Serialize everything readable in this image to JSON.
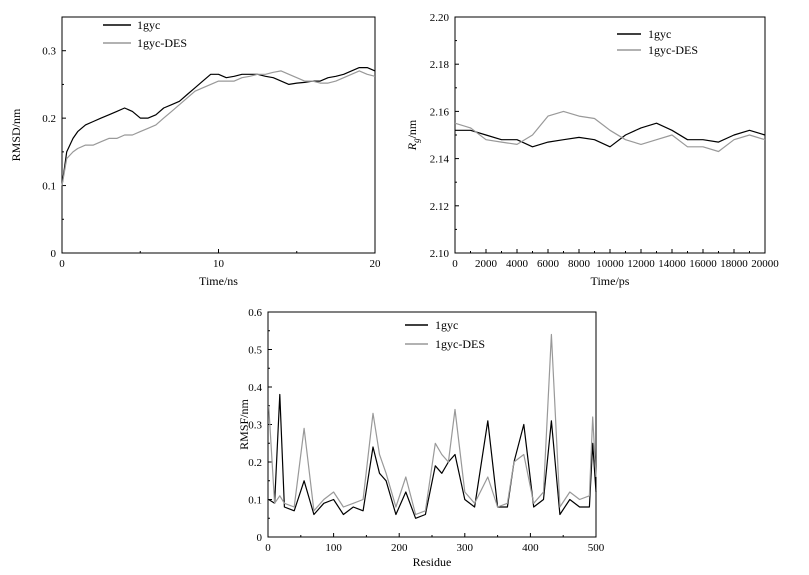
{
  "chart_data": [
    {
      "type": "line",
      "title": "",
      "xlabel": "Time/ns",
      "ylabel": "RMSD/nm",
      "xlim": [
        0,
        20
      ],
      "ylim": [
        0,
        0.35
      ],
      "x_ticks": [
        0,
        10,
        20
      ],
      "x_tick_labels": [
        "0",
        "10",
        "20"
      ],
      "y_ticks": [
        0,
        0.1,
        0.2,
        0.3
      ],
      "y_tick_labels": [
        "0",
        "0.1",
        "0.2",
        "0.3"
      ],
      "legend": {
        "position": "top-left",
        "entries": [
          "1gyc",
          "1gyc-DES"
        ]
      },
      "grid": false,
      "series": [
        {
          "name": "1gyc",
          "color": "#000000",
          "x": [
            0,
            0.3,
            0.7,
            1,
            1.5,
            2,
            2.5,
            3,
            3.5,
            4,
            4.5,
            5,
            5.5,
            6,
            6.5,
            7,
            7.5,
            8,
            8.5,
            9,
            9.5,
            10,
            10.5,
            11,
            11.5,
            12,
            12.5,
            13,
            13.5,
            14,
            14.5,
            15,
            15.5,
            16,
            16.5,
            17,
            17.5,
            18,
            18.5,
            19,
            19.5,
            20
          ],
          "y": [
            0.1,
            0.15,
            0.17,
            0.18,
            0.19,
            0.195,
            0.2,
            0.205,
            0.21,
            0.215,
            0.21,
            0.2,
            0.2,
            0.205,
            0.215,
            0.22,
            0.225,
            0.235,
            0.245,
            0.255,
            0.265,
            0.265,
            0.26,
            0.262,
            0.265,
            0.265,
            0.265,
            0.262,
            0.26,
            0.255,
            0.25,
            0.252,
            0.253,
            0.255,
            0.255,
            0.26,
            0.262,
            0.265,
            0.27,
            0.275,
            0.275,
            0.27
          ]
        },
        {
          "name": "1gyc-DES",
          "color": "#999999",
          "x": [
            0,
            0.3,
            0.7,
            1,
            1.5,
            2,
            2.5,
            3,
            3.5,
            4,
            4.5,
            5,
            5.5,
            6,
            6.5,
            7,
            7.5,
            8,
            8.5,
            9,
            9.5,
            10,
            10.5,
            11,
            11.5,
            12,
            12.5,
            13,
            13.5,
            14,
            14.5,
            15,
            15.5,
            16,
            16.5,
            17,
            17.5,
            18,
            18.5,
            19,
            19.5,
            20
          ],
          "y": [
            0.1,
            0.14,
            0.15,
            0.155,
            0.16,
            0.16,
            0.165,
            0.17,
            0.17,
            0.175,
            0.175,
            0.18,
            0.185,
            0.19,
            0.2,
            0.21,
            0.22,
            0.23,
            0.24,
            0.245,
            0.25,
            0.255,
            0.255,
            0.255,
            0.26,
            0.262,
            0.265,
            0.265,
            0.268,
            0.27,
            0.265,
            0.26,
            0.255,
            0.255,
            0.252,
            0.252,
            0.255,
            0.26,
            0.265,
            0.27,
            0.265,
            0.262
          ]
        }
      ]
    },
    {
      "type": "line",
      "title": "",
      "xlabel": "Time/ps",
      "ylabel": "Rg/nm",
      "ylabel_main": "R",
      "ylabel_sub": "g",
      "ylabel_unit": "/nm",
      "xlim": [
        0,
        20000
      ],
      "ylim": [
        2.1,
        2.2
      ],
      "x_ticks": [
        0,
        2000,
        4000,
        6000,
        8000,
        10000,
        12000,
        14000,
        16000,
        18000,
        20000
      ],
      "x_tick_labels": [
        "0",
        "2000",
        "4000",
        "6000",
        "8000",
        "10000",
        "12000",
        "14000",
        "16000",
        "18000",
        "20000"
      ],
      "y_ticks": [
        2.1,
        2.12,
        2.14,
        2.16,
        2.18,
        2.2
      ],
      "y_tick_labels": [
        "2.10",
        "2.12",
        "2.14",
        "2.16",
        "2.18",
        "2.20"
      ],
      "legend": {
        "position": "top-right",
        "entries": [
          "1gyc",
          "1gyc-DES"
        ]
      },
      "grid": false,
      "series": [
        {
          "name": "1gyc",
          "color": "#000000",
          "x": [
            0,
            1000,
            2000,
            3000,
            4000,
            5000,
            6000,
            7000,
            8000,
            9000,
            10000,
            11000,
            12000,
            13000,
            14000,
            15000,
            16000,
            17000,
            18000,
            19000,
            20000
          ],
          "y": [
            2.152,
            2.152,
            2.15,
            2.148,
            2.148,
            2.145,
            2.147,
            2.148,
            2.149,
            2.148,
            2.145,
            2.15,
            2.153,
            2.155,
            2.152,
            2.148,
            2.148,
            2.147,
            2.15,
            2.152,
            2.15
          ]
        },
        {
          "name": "1gyc-DES",
          "color": "#999999",
          "x": [
            0,
            1000,
            2000,
            3000,
            4000,
            5000,
            6000,
            7000,
            8000,
            9000,
            10000,
            11000,
            12000,
            13000,
            14000,
            15000,
            16000,
            17000,
            18000,
            19000,
            20000
          ],
          "y": [
            2.155,
            2.153,
            2.148,
            2.147,
            2.146,
            2.15,
            2.158,
            2.16,
            2.158,
            2.157,
            2.152,
            2.148,
            2.146,
            2.148,
            2.15,
            2.145,
            2.145,
            2.143,
            2.148,
            2.15,
            2.148
          ]
        }
      ]
    },
    {
      "type": "line",
      "title": "",
      "xlabel": "Residue",
      "ylabel": "RMSF/nm",
      "xlim": [
        0,
        500
      ],
      "ylim": [
        0,
        0.6
      ],
      "x_ticks": [
        0,
        100,
        200,
        300,
        400,
        500
      ],
      "x_tick_labels": [
        "0",
        "100",
        "200",
        "300",
        "400",
        "500"
      ],
      "y_ticks": [
        0,
        0.1,
        0.2,
        0.3,
        0.4,
        0.5,
        0.6
      ],
      "y_tick_labels": [
        "0",
        "0.1",
        "0.2",
        "0.3",
        "0.4",
        "0.5",
        "0.6"
      ],
      "legend": {
        "position": "top-right",
        "entries": [
          "1gyc",
          "1gyc-DES"
        ]
      },
      "grid": false,
      "series": [
        {
          "name": "1gyc",
          "color": "#000000",
          "x": [
            1,
            10,
            18,
            25,
            40,
            55,
            70,
            85,
            100,
            115,
            130,
            145,
            160,
            170,
            180,
            195,
            210,
            225,
            240,
            255,
            265,
            275,
            285,
            300,
            315,
            335,
            350,
            365,
            375,
            390,
            405,
            420,
            432,
            445,
            460,
            475,
            490,
            495,
            500
          ],
          "y": [
            0.1,
            0.09,
            0.38,
            0.08,
            0.07,
            0.15,
            0.06,
            0.09,
            0.1,
            0.06,
            0.08,
            0.07,
            0.24,
            0.17,
            0.15,
            0.06,
            0.12,
            0.05,
            0.06,
            0.19,
            0.17,
            0.2,
            0.22,
            0.1,
            0.08,
            0.31,
            0.08,
            0.08,
            0.2,
            0.3,
            0.08,
            0.1,
            0.31,
            0.06,
            0.1,
            0.08,
            0.08,
            0.25,
            0.12
          ]
        },
        {
          "name": "1gyc-DES",
          "color": "#999999",
          "x": [
            1,
            10,
            18,
            25,
            40,
            55,
            70,
            85,
            100,
            115,
            130,
            145,
            160,
            170,
            180,
            195,
            210,
            225,
            240,
            255,
            265,
            275,
            285,
            300,
            315,
            335,
            350,
            365,
            375,
            390,
            405,
            420,
            432,
            445,
            460,
            475,
            490,
            495,
            500
          ],
          "y": [
            0.35,
            0.09,
            0.11,
            0.09,
            0.08,
            0.29,
            0.07,
            0.1,
            0.12,
            0.08,
            0.09,
            0.1,
            0.33,
            0.22,
            0.17,
            0.08,
            0.16,
            0.06,
            0.07,
            0.25,
            0.22,
            0.2,
            0.34,
            0.12,
            0.09,
            0.16,
            0.08,
            0.09,
            0.2,
            0.22,
            0.09,
            0.12,
            0.54,
            0.08,
            0.12,
            0.1,
            0.11,
            0.32,
            0.16
          ]
        }
      ]
    }
  ]
}
